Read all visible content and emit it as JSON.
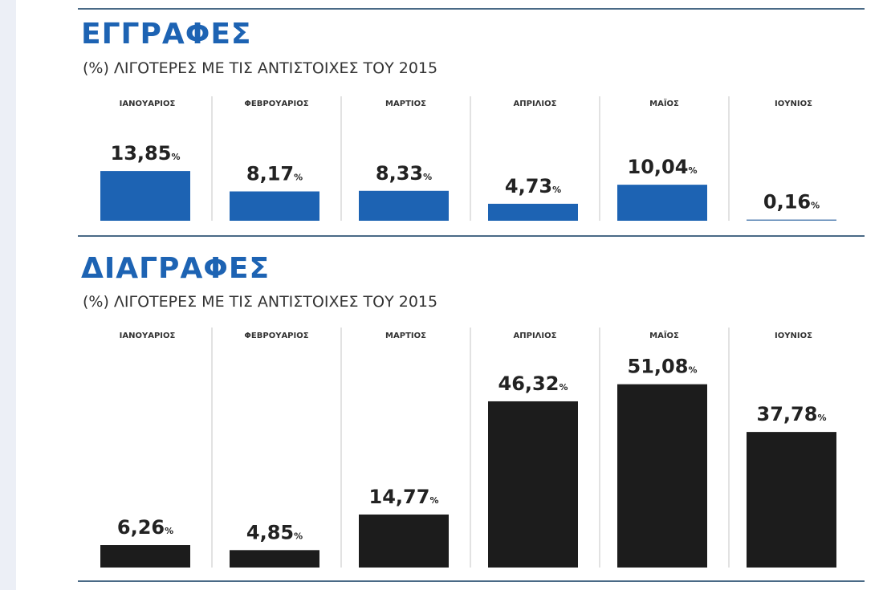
{
  "chart_data": [
    {
      "type": "bar",
      "title": "ΕΓΓΡΑΦΕΣ",
      "subtitle": "(%) ΛΙΓΟΤΕΡΕΣ ΜΕ ΤΙΣ ΑΝΤΙΣΤΟΙΧΕΣ ΤΟΥ 2015",
      "categories": [
        "ΙΑΝΟΥΑΡΙΟΣ",
        "ΦΕΒΡΟΥΑΡΙΟΣ",
        "ΜΑΡΤΙΟΣ",
        "ΑΠΡΙΛΙΟΣ",
        "ΜΑΪΟΣ",
        "ΙΟΥΝΙΟΣ"
      ],
      "values": [
        13.85,
        8.17,
        8.33,
        4.73,
        10.04,
        0.16
      ],
      "value_labels": [
        "13,85",
        "8,17",
        "8,33",
        "4,73",
        "10,04",
        "0,16"
      ],
      "unit": "%",
      "color": "#1d63b3",
      "xlabel": "",
      "ylabel": "",
      "ylim": [
        0,
        55
      ]
    },
    {
      "type": "bar",
      "title": "ΔΙΑΓΡΑΦΕΣ",
      "subtitle": "(%) ΛΙΓΟΤΕΡΕΣ ΜΕ ΤΙΣ ΑΝΤΙΣΤΟΙΧΕΣ ΤΟΥ 2015",
      "categories": [
        "ΙΑΝΟΥΑΡΙΟΣ",
        "ΦΕΒΡΟΥΑΡΙΟΣ",
        "ΜΑΡΤΙΟΣ",
        "ΑΠΡΙΛΙΟΣ",
        "ΜΑΪΟΣ",
        "ΙΟΥΝΙΟΣ"
      ],
      "values": [
        6.26,
        4.85,
        14.77,
        46.32,
        51.08,
        37.78
      ],
      "value_labels": [
        "6,26",
        "4,85",
        "14,77",
        "46,32",
        "51,08",
        "37,78"
      ],
      "unit": "%",
      "color": "#1c1c1c",
      "xlabel": "",
      "ylabel": "",
      "ylim": [
        0,
        55
      ]
    }
  ]
}
